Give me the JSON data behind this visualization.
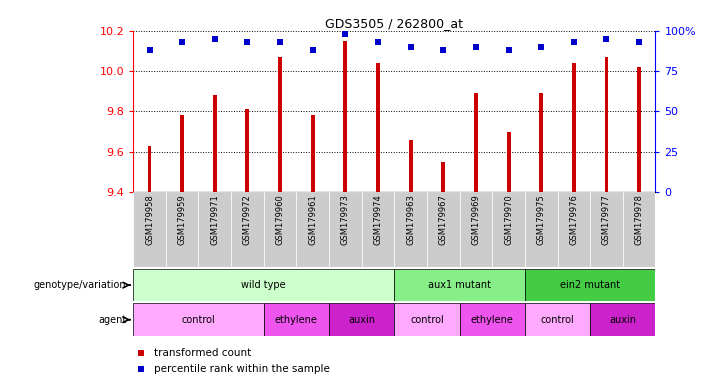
{
  "title": "GDS3505 / 262800_at",
  "samples": [
    "GSM179958",
    "GSM179959",
    "GSM179971",
    "GSM179972",
    "GSM179960",
    "GSM179961",
    "GSM179973",
    "GSM179974",
    "GSM179963",
    "GSM179967",
    "GSM179969",
    "GSM179970",
    "GSM179975",
    "GSM179976",
    "GSM179977",
    "GSM179978"
  ],
  "bar_values": [
    9.63,
    9.78,
    9.88,
    9.81,
    10.07,
    9.78,
    10.15,
    10.04,
    9.66,
    9.55,
    9.89,
    9.7,
    9.89,
    10.04,
    10.07,
    10.02
  ],
  "dot_values": [
    88,
    93,
    95,
    93,
    93,
    88,
    98,
    93,
    90,
    88,
    90,
    88,
    90,
    93,
    95,
    93
  ],
  "ylim_left": [
    9.4,
    10.2
  ],
  "ylim_right": [
    0,
    100
  ],
  "yticks_left": [
    9.4,
    9.6,
    9.8,
    10.0,
    10.2
  ],
  "yticks_right": [
    0,
    25,
    50,
    75,
    100
  ],
  "bar_color": "#cc0000",
  "dot_color": "#0000cc",
  "background_color": "#ffffff",
  "bar_width": 0.12,
  "genotype_groups": [
    {
      "label": "wild type",
      "start": 0,
      "end": 8,
      "color": "#ccffcc"
    },
    {
      "label": "aux1 mutant",
      "start": 8,
      "end": 12,
      "color": "#88ee88"
    },
    {
      "label": "ein2 mutant",
      "start": 12,
      "end": 16,
      "color": "#44cc44"
    }
  ],
  "agent_groups": [
    {
      "label": "control",
      "start": 0,
      "end": 4,
      "color": "#ffaaff"
    },
    {
      "label": "ethylene",
      "start": 4,
      "end": 6,
      "color": "#ee55ee"
    },
    {
      "label": "auxin",
      "start": 6,
      "end": 8,
      "color": "#cc22cc"
    },
    {
      "label": "control",
      "start": 8,
      "end": 10,
      "color": "#ffaaff"
    },
    {
      "label": "ethylene",
      "start": 10,
      "end": 12,
      "color": "#ee55ee"
    },
    {
      "label": "control",
      "start": 12,
      "end": 14,
      "color": "#ffaaff"
    },
    {
      "label": "auxin",
      "start": 14,
      "end": 16,
      "color": "#cc22cc"
    }
  ],
  "legend_items": [
    {
      "label": "transformed count",
      "color": "#cc0000"
    },
    {
      "label": "percentile rank within the sample",
      "color": "#0000cc"
    }
  ],
  "xlabel_color": "#aaaaaa",
  "tick_label_bg": "#cccccc"
}
